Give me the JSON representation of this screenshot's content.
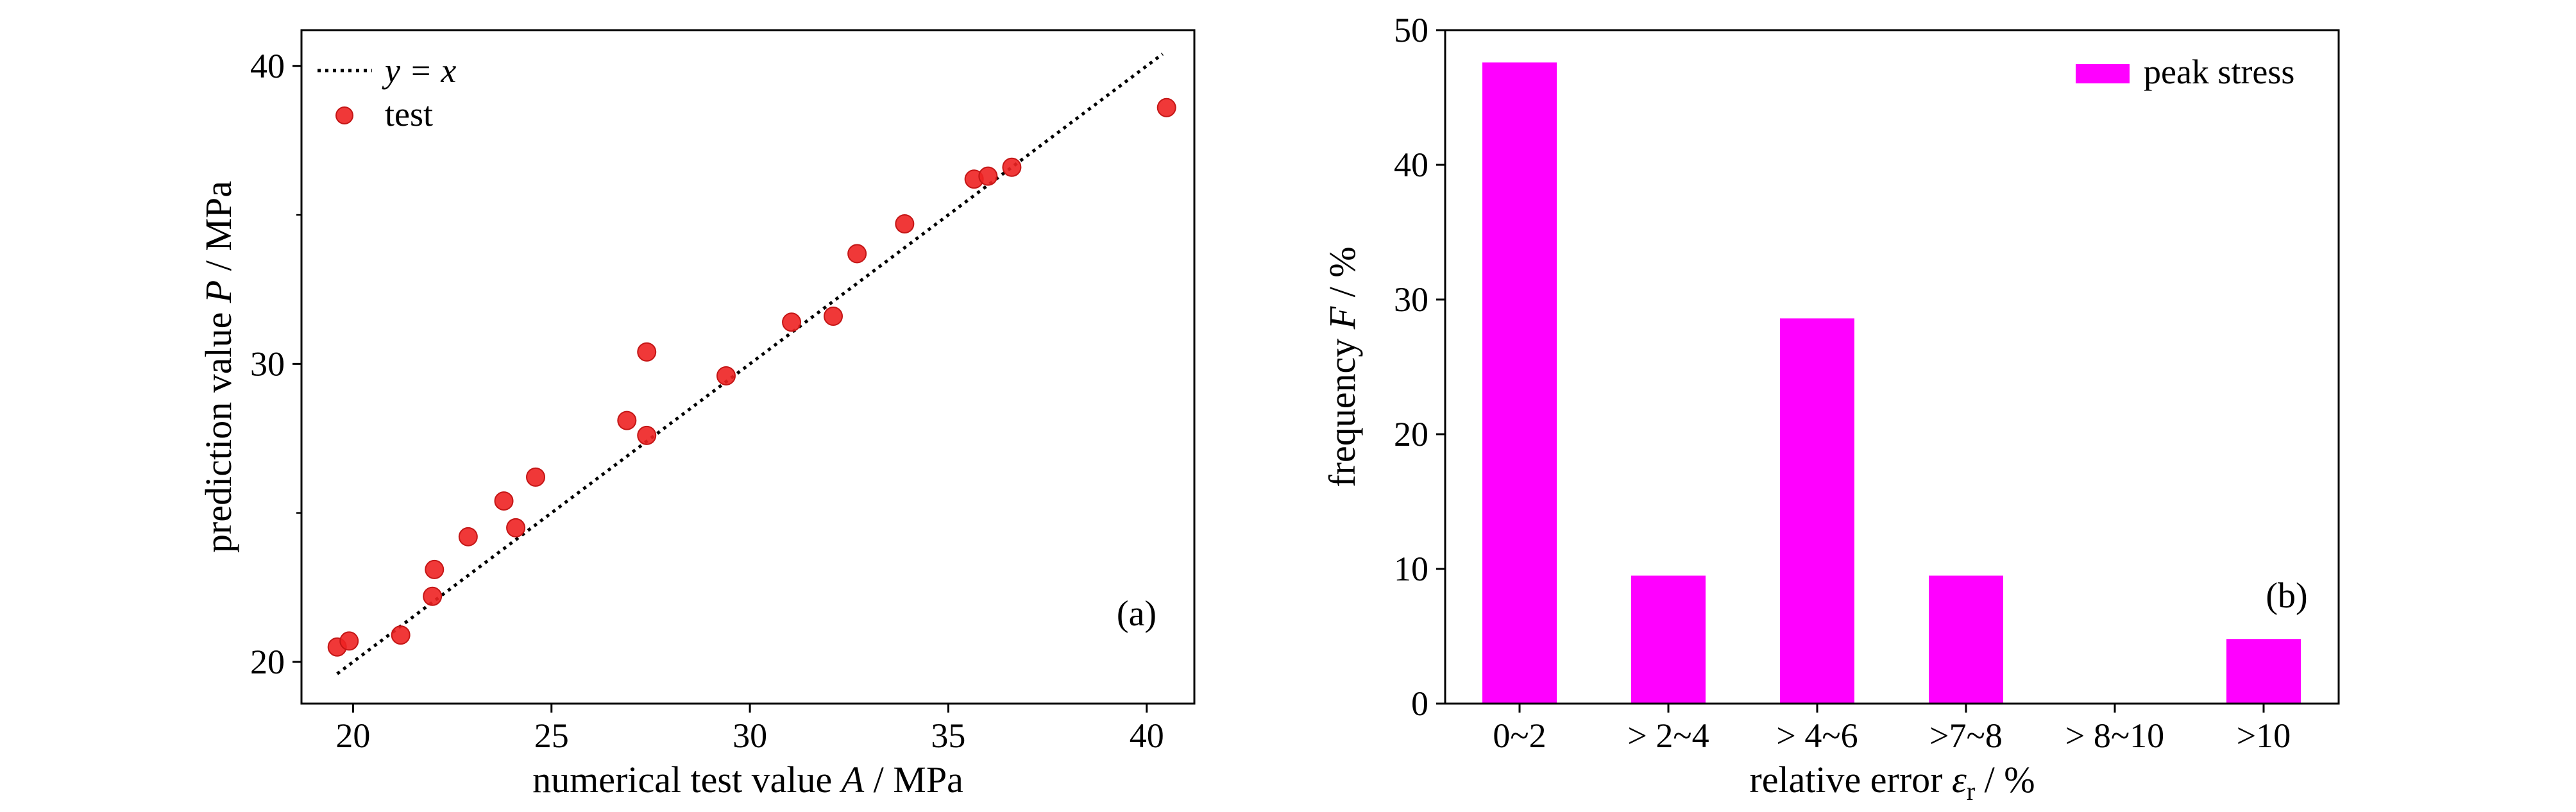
{
  "chart_data": [
    {
      "type": "scatter",
      "panel_label": "(a)",
      "xlabel": {
        "pre": "numerical test value ",
        "var": "A",
        "post": " / MPa"
      },
      "ylabel": {
        "pre": "prediction value ",
        "var": "P",
        "post": " / MPa"
      },
      "xlim": [
        18.7,
        41.2
      ],
      "ylim": [
        18.6,
        41.2
      ],
      "xticks": [
        20,
        25,
        30,
        35,
        40
      ],
      "yticks": [
        20,
        30,
        40
      ],
      "y_minor_ticks": [
        25,
        35
      ],
      "legend_position": "top-left",
      "grid": false,
      "series": [
        {
          "name": "y = x",
          "kind": "line",
          "style": "dotted",
          "color": "#000000",
          "x": [
            19.6,
            40.4
          ],
          "y": [
            19.6,
            40.4
          ]
        },
        {
          "name": "test",
          "kind": "points",
          "color": "#ee2222",
          "x": [
            19.6,
            19.9,
            21.2,
            22.0,
            22.05,
            22.9,
            23.8,
            24.1,
            24.6,
            26.9,
            27.4,
            27.4,
            29.4,
            31.05,
            32.1,
            32.7,
            33.9,
            35.65,
            36.0,
            36.6,
            40.5
          ],
          "y": [
            20.5,
            20.7,
            20.9,
            22.2,
            23.1,
            24.2,
            25.4,
            24.5,
            26.2,
            28.1,
            27.6,
            30.4,
            29.6,
            31.4,
            31.6,
            33.7,
            34.7,
            36.2,
            36.3,
            36.6,
            38.6
          ]
        }
      ]
    },
    {
      "type": "bar",
      "panel_label": "(b)",
      "xlabel": {
        "pre": "relative error ",
        "var": "ε",
        "sub": "r",
        "post": " / %"
      },
      "ylabel": {
        "pre": "frequency ",
        "var": "F",
        "post": " / %"
      },
      "ylim": [
        0,
        50
      ],
      "yticks": [
        0,
        10,
        20,
        30,
        40,
        50
      ],
      "categories": [
        "0~2",
        "> 2~4",
        "> 4~6",
        ">7~8",
        "> 8~10",
        ">10"
      ],
      "series": [
        {
          "name": "peak stress",
          "color": "#ff00ff",
          "values": [
            47.6,
            9.5,
            28.6,
            9.5,
            0,
            4.8
          ]
        }
      ],
      "legend_position": "top-right",
      "grid": false
    }
  ]
}
